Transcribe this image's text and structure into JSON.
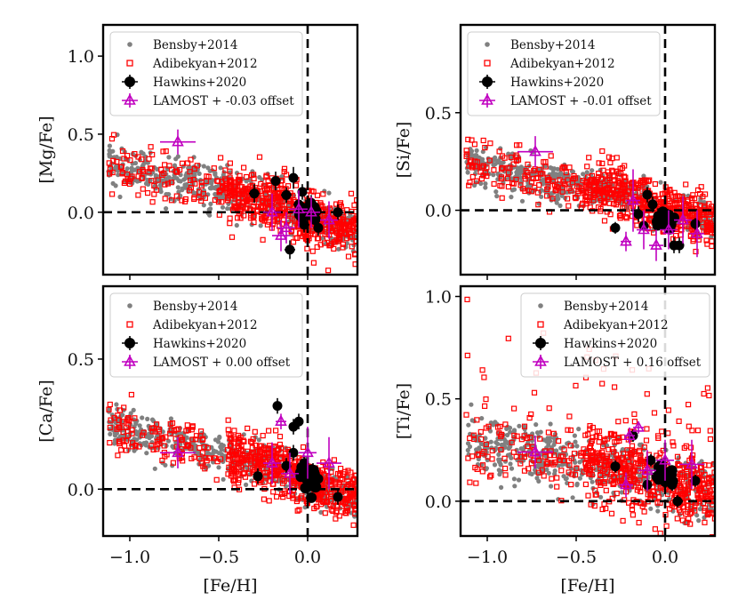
{
  "chart_data": [
    {
      "type": "scatter",
      "id": "mg",
      "ylabel": "[Mg/Fe]",
      "xlabel": "",
      "xlim": [
        -1.15,
        0.28
      ],
      "ylim": [
        -0.4,
        1.2
      ],
      "yticks": [
        "0.0",
        "0.5",
        "1.0"
      ],
      "ytick_values": [
        0,
        0.5,
        1.0
      ],
      "xticks": [],
      "xtick_values": [
        -1.0,
        -0.5,
        0.0
      ],
      "legend_position": "top-left",
      "legend": [
        "Bensby+2014",
        "Adibekyan+2012",
        "Hawkins+2020",
        "LAMOST + -0.03 offset"
      ],
      "colors": {
        "bensby": "#808080",
        "adibekyan": "#ff0000",
        "hawkins": "#000000",
        "lamost": "#c000c0"
      },
      "trend": {
        "x0": -1.1,
        "y0": 0.3,
        "slope": -0.28,
        "spread": 0.09
      },
      "hawkins": [
        {
          "x": -0.3,
          "y": 0.12,
          "ex": 0.03,
          "ey": 0.06
        },
        {
          "x": -0.18,
          "y": 0.2,
          "ex": 0.02,
          "ey": 0.06
        },
        {
          "x": -0.12,
          "y": 0.11,
          "ex": 0.03,
          "ey": 0.05
        },
        {
          "x": -0.08,
          "y": 0.22,
          "ex": 0.02,
          "ey": 0.07
        },
        {
          "x": -0.1,
          "y": -0.24,
          "ex": 0.03,
          "ey": 0.06
        },
        {
          "x": -0.05,
          "y": 0.05,
          "ex": 0.03,
          "ey": 0.06
        },
        {
          "x": -0.03,
          "y": 0.13,
          "ex": 0.02,
          "ey": 0.05
        },
        {
          "x": -0.01,
          "y": 0.02,
          "ex": 0.03,
          "ey": 0.06
        },
        {
          "x": 0.0,
          "y": -0.02,
          "ex": 0.03,
          "ey": 0.06
        },
        {
          "x": 0.02,
          "y": 0.06,
          "ex": 0.03,
          "ey": 0.05
        },
        {
          "x": 0.04,
          "y": -0.05,
          "ex": 0.02,
          "ey": 0.06
        },
        {
          "x": 0.06,
          "y": -0.1,
          "ex": 0.02,
          "ey": 0.05
        },
        {
          "x": 0.17,
          "y": 0.0,
          "ex": 0.03,
          "ey": 0.05
        },
        {
          "x": -0.02,
          "y": -0.08,
          "ex": 0.03,
          "ey": 0.05
        }
      ],
      "lamost": [
        {
          "x": -0.73,
          "y": 0.45,
          "ex": 0.1,
          "ey": 0.08
        },
        {
          "x": -0.2,
          "y": 0.0,
          "ex": 0.05,
          "ey": 0.12
        },
        {
          "x": -0.12,
          "y": -0.1,
          "ex": 0.05,
          "ey": 0.1
        },
        {
          "x": -0.05,
          "y": 0.02,
          "ex": 0.05,
          "ey": 0.12
        },
        {
          "x": 0.02,
          "y": 0.0,
          "ex": 0.05,
          "ey": 0.1
        },
        {
          "x": 0.12,
          "y": -0.05,
          "ex": 0.05,
          "ey": 0.12
        },
        {
          "x": -0.15,
          "y": -0.15,
          "ex": 0.05,
          "ey": 0.1
        }
      ]
    },
    {
      "type": "scatter",
      "id": "si",
      "ylabel": "[Si/Fe]",
      "xlabel": "",
      "xlim": [
        -1.15,
        0.28
      ],
      "ylim": [
        -0.33,
        0.95
      ],
      "yticks": [
        "0.0",
        "0.5"
      ],
      "ytick_values": [
        0,
        0.5
      ],
      "xticks": [],
      "xtick_values": [
        -1.0,
        -0.5,
        0.0
      ],
      "legend_position": "top-left",
      "legend": [
        "Bensby+2014",
        "Adibekyan+2012",
        "Hawkins+2020",
        "LAMOST + -0.01 offset"
      ],
      "colors": {
        "bensby": "#808080",
        "adibekyan": "#ff0000",
        "hawkins": "#000000",
        "lamost": "#c000c0"
      },
      "trend": {
        "x0": -1.1,
        "y0": 0.24,
        "slope": -0.2,
        "spread": 0.06
      },
      "hawkins": [
        {
          "x": -0.28,
          "y": -0.09,
          "ex": 0.02,
          "ey": 0.03
        },
        {
          "x": -0.15,
          "y": -0.02,
          "ex": 0.02,
          "ey": 0.04
        },
        {
          "x": -0.1,
          "y": 0.08,
          "ex": 0.02,
          "ey": 0.04
        },
        {
          "x": -0.07,
          "y": 0.03,
          "ex": 0.02,
          "ey": 0.04
        },
        {
          "x": -0.04,
          "y": -0.03,
          "ex": 0.02,
          "ey": 0.04
        },
        {
          "x": -0.02,
          "y": -0.06,
          "ex": 0.02,
          "ey": 0.04
        },
        {
          "x": 0.0,
          "y": -0.05,
          "ex": 0.02,
          "ey": 0.04
        },
        {
          "x": 0.03,
          "y": -0.08,
          "ex": 0.02,
          "ey": 0.04
        },
        {
          "x": 0.05,
          "y": -0.18,
          "ex": 0.02,
          "ey": 0.04
        },
        {
          "x": 0.08,
          "y": -0.18,
          "ex": 0.02,
          "ey": 0.04
        },
        {
          "x": 0.17,
          "y": -0.07,
          "ex": 0.02,
          "ey": 0.03
        },
        {
          "x": -0.12,
          "y": -0.08,
          "ex": 0.02,
          "ey": 0.03
        }
      ],
      "lamost": [
        {
          "x": -0.73,
          "y": 0.3,
          "ex": 0.1,
          "ey": 0.08
        },
        {
          "x": -0.22,
          "y": -0.16,
          "ex": 0.03,
          "ey": 0.05
        },
        {
          "x": -0.18,
          "y": 0.05,
          "ex": 0.04,
          "ey": 0.16
        },
        {
          "x": -0.12,
          "y": -0.1,
          "ex": 0.04,
          "ey": 0.1
        },
        {
          "x": -0.05,
          "y": -0.18,
          "ex": 0.04,
          "ey": 0.08
        },
        {
          "x": 0.02,
          "y": -0.1,
          "ex": 0.05,
          "ey": 0.1
        },
        {
          "x": 0.1,
          "y": -0.05,
          "ex": 0.05,
          "ey": 0.12
        },
        {
          "x": 0.18,
          "y": -0.12,
          "ex": 0.04,
          "ey": 0.12
        }
      ]
    },
    {
      "type": "scatter",
      "id": "ca",
      "ylabel": "[Ca/Fe]",
      "xlabel": "[Fe/H]",
      "xlim": [
        -1.15,
        0.28
      ],
      "ylim": [
        -0.18,
        0.78
      ],
      "yticks": [
        "0.0",
        "0.5"
      ],
      "ytick_values": [
        0,
        0.5
      ],
      "xticks": [
        "−1.0",
        "−0.5",
        "0.0"
      ],
      "xtick_values": [
        -1.0,
        -0.5,
        0.0
      ],
      "legend_position": "top-left",
      "legend": [
        "Bensby+2014",
        "Adibekyan+2012",
        "Hawkins+2020",
        "LAMOST + 0.00 offset"
      ],
      "colors": {
        "bensby": "#808080",
        "adibekyan": "#ff0000",
        "hawkins": "#000000",
        "lamost": "#c000c0"
      },
      "trend": {
        "x0": -1.1,
        "y0": 0.24,
        "slope": -0.18,
        "spread": 0.05
      },
      "hawkins": [
        {
          "x": -0.28,
          "y": 0.05,
          "ex": 0.02,
          "ey": 0.03
        },
        {
          "x": -0.17,
          "y": 0.32,
          "ex": 0.02,
          "ey": 0.03
        },
        {
          "x": -0.08,
          "y": 0.24,
          "ex": 0.02,
          "ey": 0.03
        },
        {
          "x": -0.05,
          "y": 0.26,
          "ex": 0.02,
          "ey": 0.03
        },
        {
          "x": -0.12,
          "y": 0.09,
          "ex": 0.02,
          "ey": 0.03
        },
        {
          "x": -0.04,
          "y": 0.06,
          "ex": 0.02,
          "ey": 0.03
        },
        {
          "x": -0.02,
          "y": 0.1,
          "ex": 0.02,
          "ey": 0.03
        },
        {
          "x": 0.0,
          "y": 0.03,
          "ex": 0.02,
          "ey": 0.03
        },
        {
          "x": 0.03,
          "y": 0.07,
          "ex": 0.02,
          "ey": 0.03
        },
        {
          "x": 0.06,
          "y": 0.04,
          "ex": 0.02,
          "ey": 0.03
        },
        {
          "x": 0.17,
          "y": -0.03,
          "ex": 0.02,
          "ey": 0.03
        },
        {
          "x": -0.08,
          "y": 0.14,
          "ex": 0.02,
          "ey": 0.03
        }
      ],
      "lamost": [
        {
          "x": -0.73,
          "y": 0.14,
          "ex": 0.1,
          "ey": 0.06
        },
        {
          "x": -0.15,
          "y": 0.26,
          "ex": 0.03,
          "ey": 0.03
        },
        {
          "x": -0.2,
          "y": 0.1,
          "ex": 0.05,
          "ey": 0.08
        },
        {
          "x": -0.1,
          "y": 0.06,
          "ex": 0.05,
          "ey": 0.08
        },
        {
          "x": 0.0,
          "y": 0.14,
          "ex": 0.05,
          "ey": 0.1
        },
        {
          "x": 0.12,
          "y": 0.1,
          "ex": 0.07,
          "ey": 0.1
        }
      ]
    },
    {
      "type": "scatter",
      "id": "ti",
      "ylabel": "[Ti/Fe]",
      "xlabel": "[Fe/H]",
      "xlim": [
        -1.15,
        0.28
      ],
      "ylim": [
        -0.17,
        1.05
      ],
      "yticks": [
        "0.0",
        "0.5",
        "1.0"
      ],
      "ytick_values": [
        0,
        0.5,
        1.0
      ],
      "xticks": [
        "−1.0",
        "−0.5",
        "0.0"
      ],
      "xtick_values": [
        -1.0,
        -0.5,
        0.0
      ],
      "legend_position": "top-right",
      "legend": [
        "Bensby+2014",
        "Adibekyan+2012",
        "Hawkins+2020",
        "LAMOST + 0.16 offset"
      ],
      "colors": {
        "bensby": "#808080",
        "adibekyan": "#ff0000",
        "hawkins": "#000000",
        "lamost": "#c000c0"
      },
      "trend": {
        "x0": -1.1,
        "y0": 0.28,
        "slope": -0.16,
        "spread": 0.09
      },
      "hawkins": [
        {
          "x": -0.28,
          "y": 0.17,
          "ex": 0.02,
          "ey": 0.03
        },
        {
          "x": -0.18,
          "y": 0.32,
          "ex": 0.02,
          "ey": 0.03
        },
        {
          "x": -0.1,
          "y": 0.08,
          "ex": 0.02,
          "ey": 0.03
        },
        {
          "x": -0.05,
          "y": 0.12,
          "ex": 0.02,
          "ey": 0.03
        },
        {
          "x": -0.03,
          "y": 0.15,
          "ex": 0.02,
          "ey": 0.03
        },
        {
          "x": 0.0,
          "y": 0.1,
          "ex": 0.02,
          "ey": 0.03
        },
        {
          "x": 0.02,
          "y": 0.14,
          "ex": 0.02,
          "ey": 0.03
        },
        {
          "x": 0.04,
          "y": 0.08,
          "ex": 0.02,
          "ey": 0.03
        },
        {
          "x": 0.07,
          "y": 0.0,
          "ex": 0.02,
          "ey": 0.03
        },
        {
          "x": 0.17,
          "y": 0.1,
          "ex": 0.02,
          "ey": 0.03
        },
        {
          "x": -0.08,
          "y": 0.2,
          "ex": 0.02,
          "ey": 0.03
        }
      ],
      "lamost": [
        {
          "x": -0.73,
          "y": 0.24,
          "ex": 0.1,
          "ey": 0.08
        },
        {
          "x": -0.2,
          "y": 0.32,
          "ex": 0.03,
          "ey": 0.04
        },
        {
          "x": -0.15,
          "y": 0.36,
          "ex": 0.03,
          "ey": 0.03
        },
        {
          "x": -0.1,
          "y": 0.15,
          "ex": 0.05,
          "ey": 0.1
        },
        {
          "x": 0.0,
          "y": 0.2,
          "ex": 0.05,
          "ey": 0.1
        },
        {
          "x": 0.15,
          "y": 0.18,
          "ex": 0.07,
          "ey": 0.12
        },
        {
          "x": -0.22,
          "y": 0.08,
          "ex": 0.04,
          "ey": 0.06
        }
      ]
    }
  ]
}
